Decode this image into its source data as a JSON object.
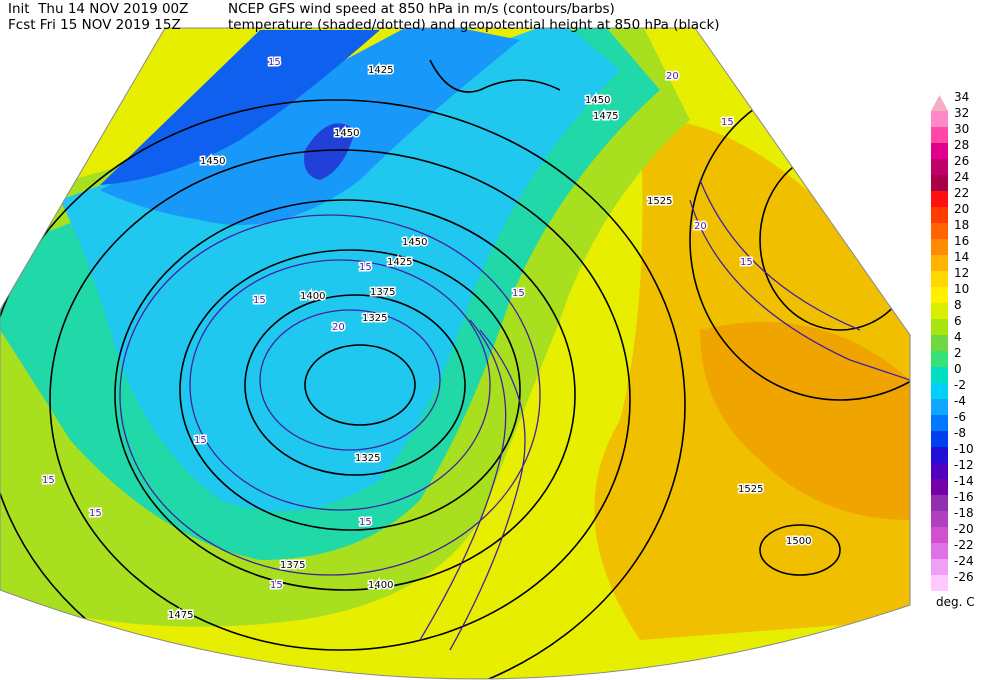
{
  "header": {
    "init": "Init  Thu 14 NOV 2019 00Z",
    "forecast": "Fcst Fri 15 NOV 2019 15Z",
    "title_line1": "NCEP GFS wind speed at 850 hPa in m/s (contours/barbs)",
    "title_line2": "temperature (shaded/dotted) and geopotential height at 850 hPa (black)"
  },
  "colorbar": {
    "labels": [
      34,
      32,
      30,
      28,
      26,
      24,
      22,
      20,
      18,
      16,
      14,
      12,
      10,
      8,
      6,
      4,
      2,
      0,
      -2,
      -4,
      -6,
      -8,
      -10,
      -12,
      -14,
      -16,
      -18,
      -20,
      -22,
      -24,
      -26
    ],
    "colors": [
      "#f0b0c0",
      "#ff88c8",
      "#ff48a8",
      "#e0008c",
      "#c0006a",
      "#a8004a",
      "#ff1010",
      "#ff3c00",
      "#ff6400",
      "#ff8c00",
      "#ffb400",
      "#ffd800",
      "#fff000",
      "#d8f000",
      "#a8e610",
      "#70d840",
      "#38e078",
      "#00e0c0",
      "#00d0f8",
      "#10a8ff",
      "#0078ff",
      "#0040f0",
      "#2010d8",
      "#5000c0",
      "#7400a8",
      "#9030b0",
      "#b040c0",
      "#d050d0",
      "#e070e8",
      "#f0a0f4",
      "#ffc8ff"
    ],
    "unit": "deg. C"
  },
  "map": {
    "height_labels": [
      1425,
      1450,
      1450,
      1450,
      1425,
      1400,
      1375,
      1325,
      1325,
      1375,
      1400,
      1475,
      1525,
      1525,
      1500,
      1475,
      1450
    ],
    "wind_labels": [
      15,
      20,
      15,
      20,
      15,
      15,
      15,
      15,
      20,
      15,
      15,
      15,
      15,
      15
    ]
  }
}
